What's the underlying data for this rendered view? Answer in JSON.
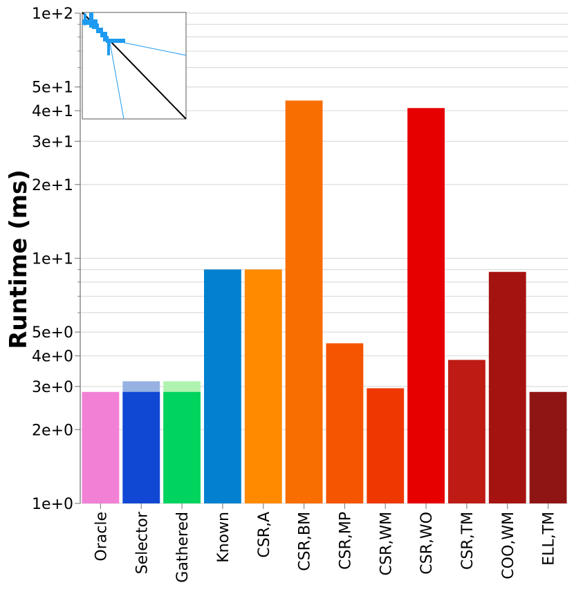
{
  "chart_data": {
    "type": "bar",
    "title": "",
    "xlabel": "",
    "ylabel": "Runtime (ms)",
    "yscale": "log",
    "ylim": [
      1,
      100
    ],
    "y_ticks": [
      {
        "value": 1,
        "label": "1e+0"
      },
      {
        "value": 2,
        "label": "2e+0"
      },
      {
        "value": 3,
        "label": "3e+0"
      },
      {
        "value": 4,
        "label": "4e+0"
      },
      {
        "value": 5,
        "label": "5e+0"
      },
      {
        "value": 10,
        "label": "1e+1"
      },
      {
        "value": 20,
        "label": "2e+1"
      },
      {
        "value": 30,
        "label": "3e+1"
      },
      {
        "value": 40,
        "label": "4e+1"
      },
      {
        "value": 50,
        "label": "5e+1"
      },
      {
        "value": 100,
        "label": "1e+2"
      }
    ],
    "grid": true,
    "categories": [
      "Oracle",
      "Selector",
      "Gathered",
      "Known",
      "CSR,A",
      "CSR,BM",
      "CSR,MP",
      "CSR,WM",
      "CSR,WO",
      "CSR,TM",
      "COO,WM",
      "ELL,TM"
    ],
    "values": [
      2.85,
      3.15,
      3.15,
      9.0,
      9.0,
      44.0,
      4.5,
      2.95,
      41.0,
      3.85,
      8.8,
      2.85
    ],
    "overlay_values": [
      null,
      2.85,
      2.85,
      null,
      null,
      null,
      null,
      null,
      null,
      null,
      null,
      null
    ],
    "colors": [
      "#f281d6",
      "#97b2e2",
      "#b0f3b0",
      "#0381d0",
      "#ff8a00",
      "#f86e00",
      "#f55500",
      "#ef3800",
      "#e60000",
      "#be1b14",
      "#a51311",
      "#8f1515"
    ],
    "overlay_colors": [
      null,
      "#1048d4",
      "#00d35e",
      null,
      null,
      null,
      null,
      null,
      null,
      null,
      null,
      null
    ],
    "inset": {
      "description_icon": "sparse-matrix-pattern",
      "line_color": "#1e9bf0",
      "diagonal_color": "#000000"
    }
  }
}
